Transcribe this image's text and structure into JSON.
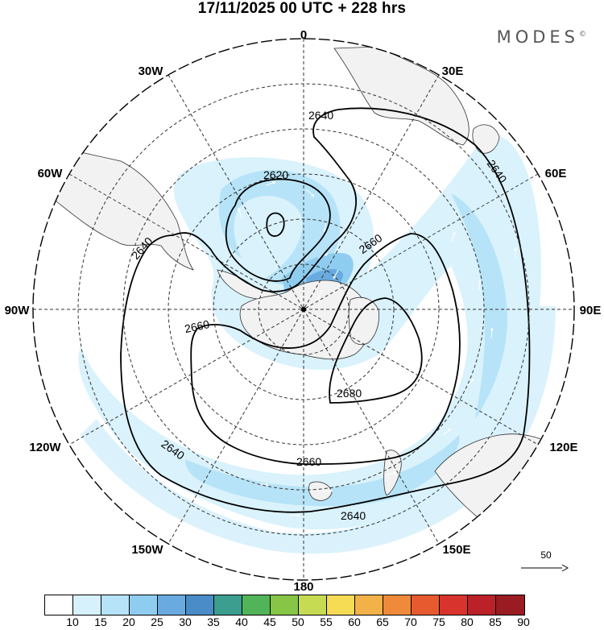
{
  "header": {
    "title": "17/11/2025  00 UTC  + 228 hrs",
    "brand": "MODES",
    "brand_mark": "©"
  },
  "map": {
    "projection": "south-polar-stereographic",
    "longitude_labels": [
      "0",
      "30E",
      "60E",
      "90E",
      "120E",
      "150E",
      "180",
      "150W",
      "120W",
      "90W",
      "60W",
      "30W"
    ],
    "contour_labels": [
      "2620",
      "2640",
      "2640",
      "2640",
      "2640",
      "2640",
      "2660",
      "2660",
      "2660",
      "2680"
    ],
    "field": "wind speed (shaded) with geopotential height contours",
    "colors": {
      "land": "#f2f2f2",
      "ocean": "#ffffff",
      "contour": "#000000"
    }
  },
  "reference_vector": {
    "label": "50"
  },
  "colorbar": {
    "ticks": [
      "10",
      "15",
      "20",
      "25",
      "30",
      "35",
      "40",
      "45",
      "50",
      "55",
      "60",
      "65",
      "70",
      "75",
      "80",
      "85",
      "90"
    ],
    "colors": [
      "#ffffff",
      "#d7f1fc",
      "#b6e3f7",
      "#8fcdf0",
      "#69abe0",
      "#4a8cc8",
      "#3c9e8f",
      "#52b458",
      "#86c545",
      "#c6db52",
      "#f6db55",
      "#f3b14a",
      "#ee8a3a",
      "#e75a30",
      "#d8332d",
      "#bb2128",
      "#9a1b22"
    ]
  }
}
